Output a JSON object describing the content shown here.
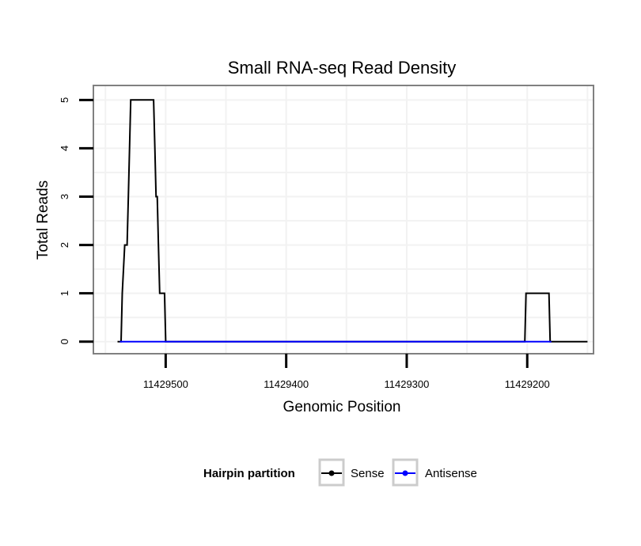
{
  "chart_data": {
    "type": "line",
    "title": "Small RNA-seq Read Density",
    "xlabel": "Genomic Position",
    "ylabel": "Total Reads",
    "x_reversed": true,
    "xlim": [
      11429560,
      11429145
    ],
    "ylim": [
      -0.25,
      5.3
    ],
    "x_ticks": [
      11429500,
      11429400,
      11429300,
      11429200
    ],
    "x_tick_labels": [
      "11429500",
      "11429400",
      "11429300",
      "11429200"
    ],
    "y_ticks": [
      0,
      1,
      2,
      3,
      4,
      5
    ],
    "y_tick_labels": [
      "0",
      "1",
      "2",
      "3",
      "4",
      "5"
    ],
    "grid": true,
    "series": [
      {
        "name": "Sense",
        "color": "#000000",
        "x": [
          11429540,
          11429537,
          11429536,
          11429534,
          11429533,
          11429532,
          11429531,
          11429530,
          11429529,
          11429510,
          11429509,
          11429508,
          11429507,
          11429506,
          11429505,
          11429501,
          11429500,
          11429400,
          11429300,
          11429203,
          11429202,
          11429201,
          11429200,
          11429190,
          11429182,
          11429181,
          11429150
        ],
        "y": [
          0,
          0,
          1,
          2,
          2,
          2,
          3,
          4,
          5,
          5,
          4,
          3,
          3,
          2,
          1,
          1,
          0,
          0,
          0,
          0,
          0,
          1,
          1,
          1,
          1,
          0,
          0
        ]
      },
      {
        "name": "Antisense",
        "color": "#0000ff",
        "x": [
          11429538,
          11429506,
          11429500,
          11429203,
          11429180
        ],
        "y": [
          0,
          0,
          0,
          0,
          0
        ]
      }
    ],
    "legend": {
      "title": "Hairpin partition",
      "position": "bottom",
      "entries": [
        "Sense",
        "Antisense"
      ]
    }
  }
}
